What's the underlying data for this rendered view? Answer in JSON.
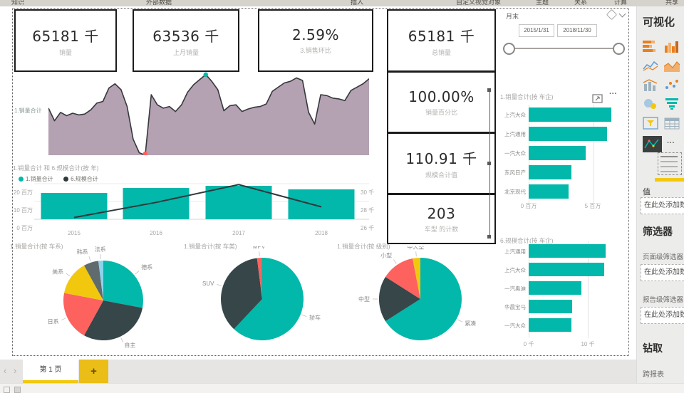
{
  "colors": {
    "teal": "#01B8AA",
    "dark_slate": "#374649",
    "red": "#FD625E",
    "yellow": "#F2C80F",
    "gray_slate": "#5F6B6D",
    "light_blue": "#8AD4EB",
    "area_fill": "#B4A1B2",
    "area_stroke": "#35393C",
    "accent_yellow": "#F2C811"
  },
  "toolbar": {
    "items": [
      "知识",
      "外部数据",
      "插入",
      "自定义视觉对象",
      "主题",
      "关系",
      "计算",
      "共享"
    ]
  },
  "cards": {
    "sales": {
      "value": "65181 千",
      "label": "销量"
    },
    "last_month": {
      "value": "63536 千",
      "label": "上月销量"
    },
    "mom": {
      "value": "2.59%",
      "label": "3.销售环比"
    },
    "total": {
      "value": "65181 千",
      "label": "总销量"
    },
    "pct": {
      "value": "100.00%",
      "label": "销量百分比"
    },
    "scale": {
      "value": "110.91 千",
      "label": "规模合计值"
    },
    "model_count": {
      "value": "203",
      "label": "车型 的计数"
    }
  },
  "slicer": {
    "title": "月末",
    "start_date": "2015/1/31",
    "end_date": "2018/11/30"
  },
  "chart_data": [
    {
      "type": "area",
      "title": "1.销量合计",
      "xlabel": "",
      "ylabel": "",
      "values_relative": [
        56,
        41,
        51,
        47,
        50,
        48,
        49,
        54,
        62,
        64,
        80,
        85,
        78,
        58,
        19,
        3,
        0,
        72,
        60,
        56,
        58,
        52,
        60,
        75,
        84,
        90,
        96,
        88,
        78,
        53,
        59,
        60,
        52,
        55,
        57,
        58,
        61,
        76,
        81,
        86,
        88,
        92,
        89,
        51,
        37,
        72,
        71,
        68,
        67,
        65,
        77,
        81,
        85,
        91
      ],
      "marker_max_index": 26,
      "marker_min_index": 16
    },
    {
      "type": "combo",
      "title": "1.销量合计 和 6.规模合计(按 年)",
      "categories": [
        "2015",
        "2016",
        "2017",
        "2018"
      ],
      "series": [
        {
          "name": "1.销量合计",
          "kind": "bar",
          "unit": "百万",
          "values": [
            14.8,
            17.6,
            18.8,
            16.8
          ]
        },
        {
          "name": "6.规模合计",
          "kind": "line",
          "unit": "千",
          "values": [
            26.2,
            27.9,
            29.9,
            27.4
          ]
        }
      ],
      "left_axis_ticks": [
        "20 百万",
        "10 百万",
        "0 百万"
      ],
      "right_axis_ticks": [
        "30 千",
        "28 千",
        "26 千"
      ],
      "left_ylim": [
        0,
        20
      ],
      "right_ylim": [
        26,
        30
      ]
    },
    {
      "type": "pie",
      "title": "1.销量合计(按 车系)",
      "slices": [
        {
          "label": "德系",
          "pct": 28,
          "color": "#01B8AA"
        },
        {
          "label": "自主",
          "pct": 30,
          "color": "#374649"
        },
        {
          "label": "日系",
          "pct": 20,
          "color": "#FD625E"
        },
        {
          "label": "美系",
          "pct": 14,
          "color": "#F2C80F"
        },
        {
          "label": "韩系",
          "pct": 6,
          "color": "#5F6B6D"
        },
        {
          "label": "法系",
          "pct": 2,
          "color": "#8AD4EB"
        }
      ]
    },
    {
      "type": "pie",
      "title": "1.销量合计(按 车类)",
      "slices": [
        {
          "label": "轿车",
          "pct": 62,
          "color": "#01B8AA"
        },
        {
          "label": "SUV",
          "pct": 36,
          "color": "#374649"
        },
        {
          "label": "MPV",
          "pct": 2,
          "color": "#FD625E"
        }
      ]
    },
    {
      "type": "pie",
      "title": "1.销量合计(按 级别)",
      "slices": [
        {
          "label": "紧凑",
          "pct": 66,
          "color": "#01B8AA"
        },
        {
          "label": "中型",
          "pct": 18,
          "color": "#374649"
        },
        {
          "label": "小型",
          "pct": 13,
          "color": "#FD625E"
        },
        {
          "label": "中大型",
          "pct": 3,
          "color": "#F2C80F"
        }
      ]
    },
    {
      "type": "bar",
      "title": "1.销量合计(按 车企)",
      "orientation": "horizontal",
      "categories": [
        "上汽大众",
        "上汽通用",
        "一汽大众",
        "东风日产",
        "北京现代"
      ],
      "values": [
        6.4,
        6.1,
        4.4,
        3.3,
        3.1
      ],
      "unit": "百万",
      "x_ticks": [
        "0 百万",
        "5 百万"
      ],
      "xlim": [
        0,
        6.6
      ]
    },
    {
      "type": "bar",
      "title": "6.规模合计(按 车企)",
      "orientation": "horizontal",
      "categories": [
        "上汽通用",
        "上汽大众",
        "一汽奥迪",
        "华晨宝马",
        "一汽大众"
      ],
      "values": [
        13.0,
        12.8,
        8.9,
        7.3,
        7.2
      ],
      "unit": "千",
      "x_ticks": [
        "0 千",
        "10 千"
      ],
      "xlim": [
        0,
        13.2
      ]
    }
  ],
  "visual_header": {
    "more_icon": "···"
  },
  "viz_panel": {
    "title": "可视化",
    "values_section_label": "值",
    "field_placeholder": "在此处添加数据字段",
    "filters_section_label": "筛选器",
    "page_filter_label": "页面级筛选器",
    "report_filter_label": "报告级筛选器",
    "drillthrough_label": "钻取",
    "cross_report_label": "跨报表",
    "more_icon": "···"
  },
  "page_bar": {
    "tab_label": "第 1 页",
    "add_label": "+",
    "prev": "‹",
    "next": "›"
  }
}
